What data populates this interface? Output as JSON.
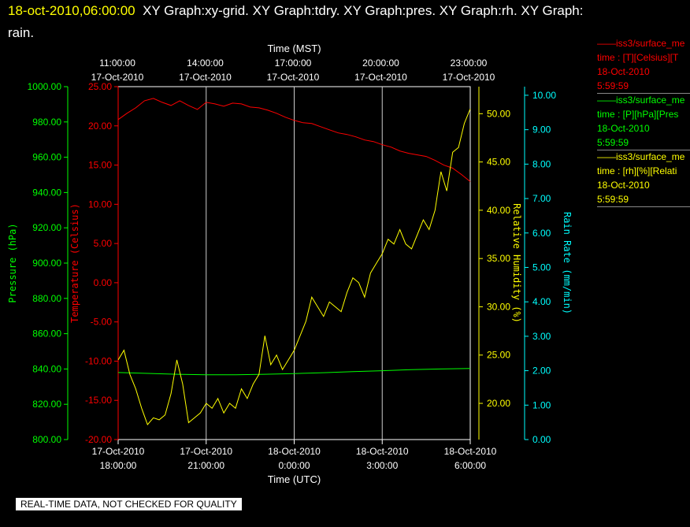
{
  "header": {
    "timestamp": "18-oct-2010,06:00:00",
    "titles_line1": "XY Graph:xy-grid.  XY Graph:tdry.  XY Graph:pres.  XY Graph:rh.  XY Graph:",
    "titles_line2": "rain."
  },
  "legend": [
    {
      "line1": "iss3/surface_me",
      "line2": "time : [T][Celsius][T",
      "line3": "18-Oct-2010",
      "line4": "5:59:59",
      "color": "#ff0000"
    },
    {
      "line1": "iss3/surface_me",
      "line2": "time : [P][hPa][Pres",
      "line3": "18-Oct-2010",
      "line4": "5:59:59",
      "color": "#00ff00"
    },
    {
      "line1": "iss3/surface_me",
      "line2": "time : [rh][%][Relati",
      "line3": "18-Oct-2010",
      "line4": "5:59:59",
      "color": "#ffff00"
    }
  ],
  "footer": "REAL-TIME DATA, NOT CHECKED FOR QUALITY",
  "chart_data": {
    "type": "line",
    "x_top": {
      "label": "Time (MST)",
      "ticks": [
        {
          "t": "11:00:00",
          "d": "17-Oct-2010"
        },
        {
          "t": "14:00:00",
          "d": "17-Oct-2010"
        },
        {
          "t": "17:00:00",
          "d": "17-Oct-2010"
        },
        {
          "t": "20:00:00",
          "d": "17-Oct-2010"
        },
        {
          "t": "23:00:00",
          "d": "17-Oct-2010"
        }
      ]
    },
    "x_bottom": {
      "label": "Time (UTC)",
      "range_hours": [
        0,
        12
      ],
      "ticks": [
        {
          "d": "17-Oct-2010",
          "t": "18:00:00"
        },
        {
          "d": "17-Oct-2010",
          "t": "21:00:00"
        },
        {
          "d": "18-Oct-2010",
          "t": "0:00:00"
        },
        {
          "d": "18-Oct-2010",
          "t": "3:00:00"
        },
        {
          "d": "18-Oct-2010",
          "t": "6:00:00"
        }
      ]
    },
    "axes": {
      "pressure": {
        "label": "Pressure (hPa)",
        "color": "#00ff00",
        "ylim": [
          800,
          1000
        ],
        "ticks": [
          "800.00",
          "820.00",
          "840.00",
          "860.00",
          "880.00",
          "900.00",
          "920.00",
          "940.00",
          "960.00",
          "980.00",
          "1000.00"
        ]
      },
      "temperature": {
        "label": "Temperature (Celsius)",
        "color": "#ff0000",
        "ylim": [
          -20,
          25
        ],
        "ticks": [
          "-20.00",
          "-15.00",
          "-10.00",
          "-5.00",
          "0.00",
          "5.00",
          "10.00",
          "15.00",
          "20.00",
          "25.00"
        ]
      },
      "rh": {
        "label": "Relative Humidity (%)",
        "color": "#ffff00",
        "ylim": [
          16.25,
          52.8
        ],
        "ticks": [
          "20.00",
          "25.00",
          "30.00",
          "35.00",
          "40.00",
          "45.00",
          "50.00"
        ]
      },
      "rain": {
        "label": "Rain Rate (mm/min)",
        "color": "#00ffff",
        "ylim": [
          0,
          10.25
        ],
        "ticks": [
          "0.00",
          "1.00",
          "2.00",
          "3.00",
          "4.00",
          "5.00",
          "6.00",
          "7.00",
          "8.00",
          "9.00",
          "10.00"
        ]
      }
    },
    "grid": "vertical",
    "series": [
      {
        "name": "iss3/surface_me",
        "axis": "temperature",
        "color": "#ff0000",
        "x": [
          0,
          0.3,
          0.6,
          0.9,
          1.2,
          1.5,
          1.8,
          2.1,
          2.4,
          2.7,
          3.0,
          3.3,
          3.6,
          3.9,
          4.2,
          4.5,
          4.8,
          5.1,
          5.4,
          5.7,
          6.0,
          6.3,
          6.6,
          6.9,
          7.2,
          7.5,
          7.8,
          8.1,
          8.4,
          8.7,
          9.0,
          9.3,
          9.6,
          9.9,
          10.2,
          10.5,
          10.8,
          11.1,
          11.4,
          11.7,
          12.0
        ],
        "values": [
          20.8,
          21.6,
          22.3,
          23.2,
          23.5,
          23.0,
          22.6,
          23.2,
          22.6,
          22.1,
          23.0,
          22.8,
          22.5,
          22.9,
          22.8,
          22.4,
          22.3,
          22.0,
          21.6,
          21.1,
          20.7,
          20.4,
          20.3,
          19.9,
          19.5,
          19.1,
          18.9,
          18.6,
          18.2,
          18.0,
          17.6,
          17.3,
          16.8,
          16.5,
          16.3,
          16.1,
          15.6,
          15.0,
          14.6,
          13.8,
          12.9
        ]
      },
      {
        "name": "iss3/surface_me",
        "axis": "pressure",
        "color": "#00ff00",
        "x": [
          0,
          1,
          2,
          3,
          4,
          5,
          6,
          7,
          8,
          9,
          10,
          11,
          12
        ],
        "values": [
          838.0,
          837.5,
          837.0,
          836.7,
          836.7,
          837.0,
          837.4,
          837.9,
          838.5,
          839.0,
          839.6,
          840.0,
          840.3
        ]
      },
      {
        "name": "iss3/surface_me",
        "axis": "rh",
        "color": "#ffff00",
        "x": [
          0,
          0.2,
          0.4,
          0.6,
          0.8,
          1.0,
          1.2,
          1.4,
          1.6,
          1.8,
          2.0,
          2.2,
          2.4,
          2.6,
          2.8,
          3.0,
          3.2,
          3.4,
          3.6,
          3.8,
          4.0,
          4.2,
          4.4,
          4.6,
          4.8,
          5.0,
          5.2,
          5.4,
          5.6,
          5.8,
          6.0,
          6.2,
          6.4,
          6.6,
          6.8,
          7.0,
          7.2,
          7.4,
          7.6,
          7.8,
          8.0,
          8.2,
          8.4,
          8.6,
          8.8,
          9.0,
          9.2,
          9.4,
          9.6,
          9.8,
          10.0,
          10.2,
          10.4,
          10.6,
          10.8,
          11.0,
          11.2,
          11.4,
          11.6,
          11.8,
          12.0
        ],
        "values": [
          24.5,
          25.5,
          23.0,
          21.5,
          19.5,
          17.8,
          18.5,
          18.3,
          18.8,
          21.0,
          24.5,
          22.0,
          18.0,
          18.5,
          19.0,
          20.0,
          19.5,
          20.5,
          19.0,
          20.0,
          19.5,
          21.5,
          20.5,
          22.0,
          23.0,
          27.0,
          24.0,
          25.0,
          23.5,
          24.5,
          25.5,
          27.0,
          28.5,
          31.0,
          30.0,
          29.0,
          30.5,
          30.0,
          29.5,
          31.5,
          33.0,
          32.5,
          31.0,
          33.5,
          34.5,
          35.5,
          37.0,
          36.5,
          38.0,
          36.5,
          36.0,
          37.5,
          39.0,
          38.0,
          40.0,
          44.0,
          42.0,
          46.0,
          46.5,
          49.0,
          50.5
        ]
      },
      {
        "name": "",
        "axis": "rain",
        "color": "#00ffff",
        "x": [],
        "values": []
      }
    ]
  }
}
